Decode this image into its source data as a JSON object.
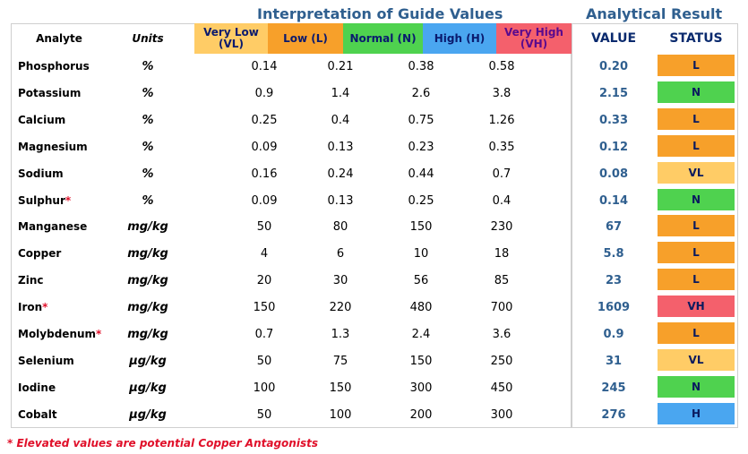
{
  "titles": {
    "guide": "Interpretation of Guide Values",
    "result": "Analytical Result"
  },
  "headers": {
    "analyte": "Analyte",
    "units": "Units",
    "very_low": "Very Low\n(VL)",
    "low": "Low (L)",
    "normal": "Normal (N)",
    "high": "High (H)",
    "very_high": "Very High\n(VH)",
    "value": "VALUE",
    "status": "STATUS"
  },
  "colors": {
    "very_low": "#ffcc66",
    "low": "#f7a02a",
    "normal": "#4fd24f",
    "high": "#4aa6f0",
    "very_high": "#f4606c",
    "title": "#2f5f8f",
    "star": "#e0102a"
  },
  "rows": [
    {
      "analyte": "Phosphorus",
      "star": "",
      "units": "%",
      "vl": "0.14",
      "l": "0.21",
      "n": "0.38",
      "h": "0.58",
      "value": "0.20",
      "status": "L"
    },
    {
      "analyte": "Potassium",
      "star": "",
      "units": "%",
      "vl": "0.9",
      "l": "1.4",
      "n": "2.6",
      "h": "3.8",
      "value": "2.15",
      "status": "N"
    },
    {
      "analyte": "Calcium",
      "star": "",
      "units": "%",
      "vl": "0.25",
      "l": "0.4",
      "n": "0.75",
      "h": "1.26",
      "value": "0.33",
      "status": "L"
    },
    {
      "analyte": "Magnesium",
      "star": "",
      "units": "%",
      "vl": "0.09",
      "l": "0.13",
      "n": "0.23",
      "h": "0.35",
      "value": "0.12",
      "status": "L"
    },
    {
      "analyte": "Sodium",
      "star": "",
      "units": "%",
      "vl": "0.16",
      "l": "0.24",
      "n": "0.44",
      "h": "0.7",
      "value": "0.08",
      "status": "VL"
    },
    {
      "analyte": "Sulphur",
      "star": "*",
      "units": "%",
      "vl": "0.09",
      "l": "0.13",
      "n": "0.25",
      "h": "0.4",
      "value": "0.14",
      "status": "N"
    },
    {
      "analyte": "Manganese",
      "star": "",
      "units": "mg/kg",
      "vl": "50",
      "l": "80",
      "n": "150",
      "h": "230",
      "value": "67",
      "status": "L"
    },
    {
      "analyte": "Copper",
      "star": "",
      "units": "mg/kg",
      "vl": "4",
      "l": "6",
      "n": "10",
      "h": "18",
      "value": "5.8",
      "status": "L"
    },
    {
      "analyte": "Zinc",
      "star": "",
      "units": "mg/kg",
      "vl": "20",
      "l": "30",
      "n": "56",
      "h": "85",
      "value": "23",
      "status": "L"
    },
    {
      "analyte": "Iron",
      "star": "*",
      "units": "mg/kg",
      "vl": "150",
      "l": "220",
      "n": "480",
      "h": "700",
      "value": "1609",
      "status": "VH"
    },
    {
      "analyte": "Molybdenum",
      "star": "*",
      "units": "mg/kg",
      "vl": "0.7",
      "l": "1.3",
      "n": "2.4",
      "h": "3.6",
      "value": "0.9",
      "status": "L"
    },
    {
      "analyte": "Selenium",
      "star": "",
      "units": "µg/kg",
      "vl": "50",
      "l": "75",
      "n": "150",
      "h": "250",
      "value": "31",
      "status": "VL"
    },
    {
      "analyte": "Iodine",
      "star": "",
      "units": "µg/kg",
      "vl": "100",
      "l": "150",
      "n": "300",
      "h": "450",
      "value": "245",
      "status": "N"
    },
    {
      "analyte": "Cobalt",
      "star": "",
      "units": "µg/kg",
      "vl": "50",
      "l": "100",
      "n": "200",
      "h": "300",
      "value": "276",
      "status": "H"
    }
  ],
  "footnote": "* Elevated values are potential Copper Antagonists"
}
